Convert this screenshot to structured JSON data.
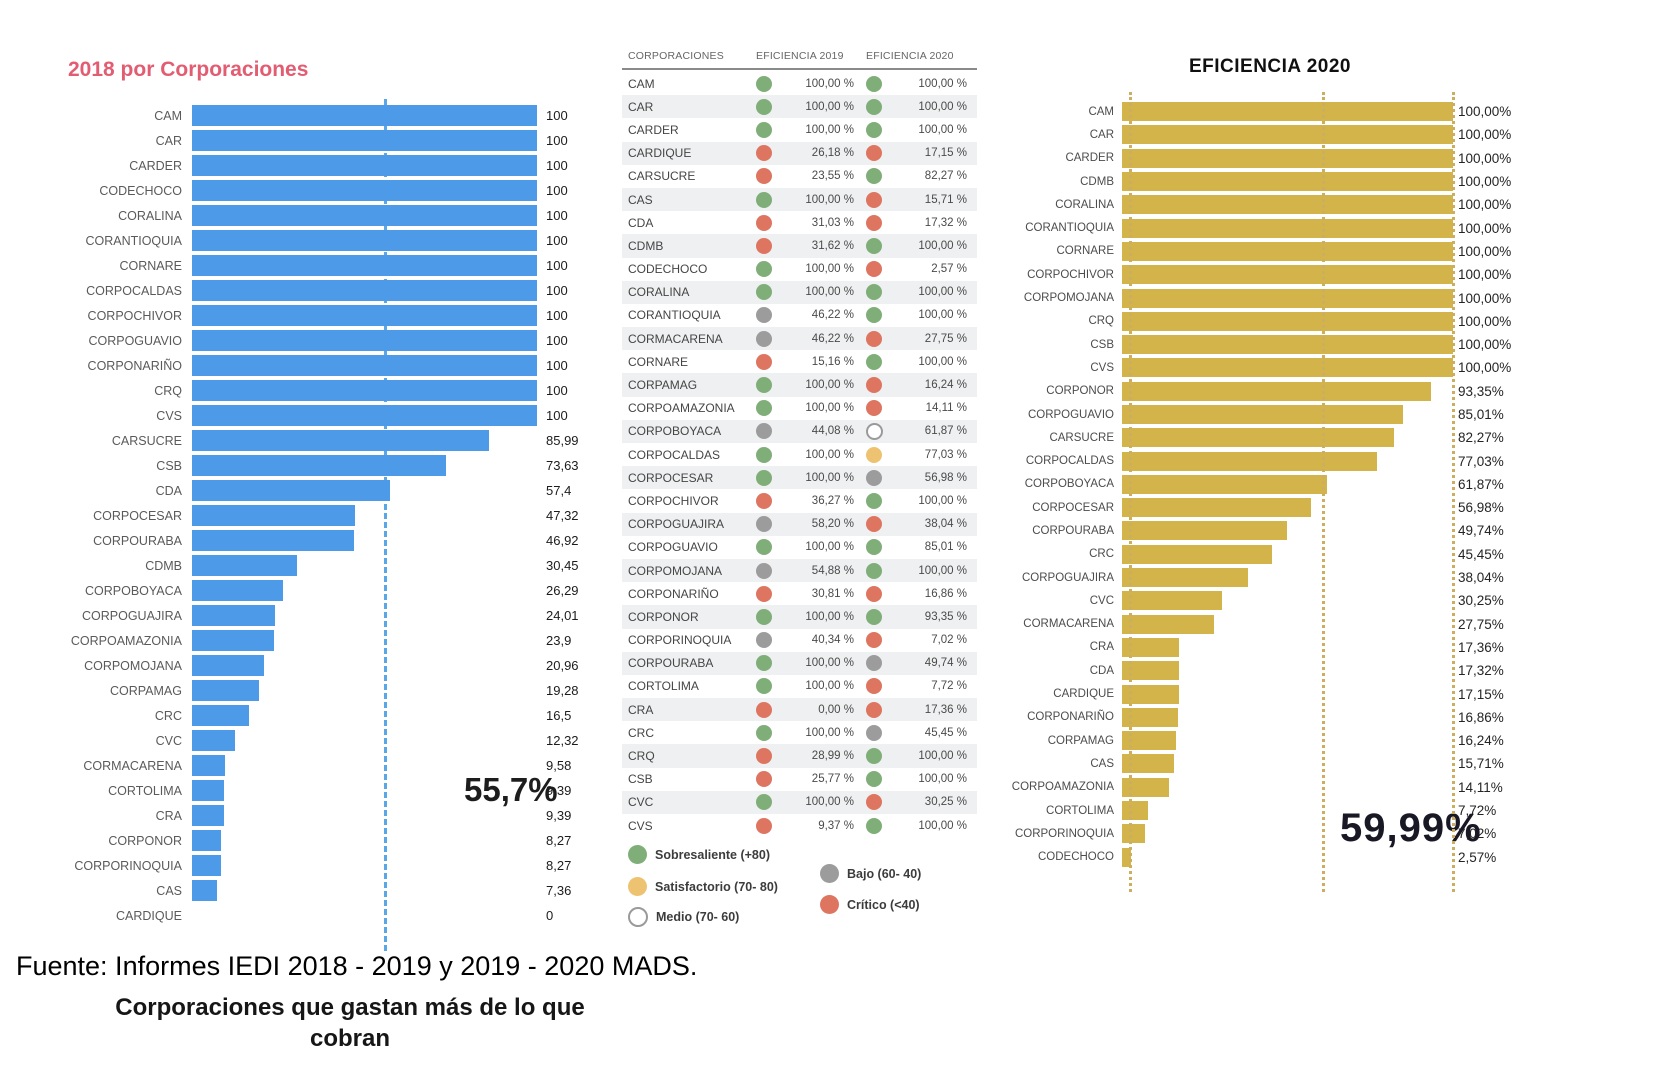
{
  "colors": {
    "left_bar": "#4d9ae8",
    "left_refline": "#5aa7e8",
    "left_title": "#e25c72",
    "right_bar": "#d2b44a",
    "right_gridline": "#ccae5e",
    "annotation_left": "#1d1d1d",
    "annotation_right": "#191926",
    "dots": {
      "green": "#7fae79",
      "yellow": "#edc371",
      "white": "#ffffff",
      "gray": "#9c9c9c",
      "red": "#dd7560"
    }
  },
  "footer": {
    "source": "Fuente: Informes IEDI 2018 - 2019 y 2019 - 2020 MADS.",
    "caption": "Corporaciones que gastan más de lo que cobran"
  },
  "chart_data": [
    {
      "type": "bar",
      "orientation": "horizontal",
      "title": "2018 por Corporaciones",
      "xlabel": "",
      "ylabel": "",
      "xlim": [
        0,
        100
      ],
      "grid": false,
      "reference_line": 55.65,
      "annotation": "55,7%",
      "categories": [
        "CAM",
        "CAR",
        "CARDER",
        "CODECHOCO",
        "CORALINA",
        "CORANTIOQUIA",
        "CORNARE",
        "CORPOCALDAS",
        "CORPOCHIVOR",
        "CORPOGUAVIO",
        "CORPONARIÑO",
        "CRQ",
        "CVS",
        "CARSUCRE",
        "CSB",
        "CDA",
        "CORPOCESAR",
        "CORPOURABA",
        "CDMB",
        "CORPOBOYACA",
        "CORPOGUAJIRA",
        "CORPOAMAZONIA",
        "CORPOMOJANA",
        "CORPAMAG",
        "CRC",
        "CVC",
        "CORMACARENA",
        "CORTOLIMA",
        "CRA",
        "CORPONOR",
        "CORPORINOQUIA",
        "CAS",
        "CARDIQUE"
      ],
      "values": [
        100,
        100,
        100,
        100,
        100,
        100,
        100,
        100,
        100,
        100,
        100,
        100,
        100,
        85.99,
        73.63,
        57.4,
        47.32,
        46.92,
        30.45,
        26.29,
        24.01,
        23.9,
        20.96,
        19.28,
        16.5,
        12.32,
        9.58,
        9.39,
        9.39,
        8.27,
        8.27,
        7.36,
        0
      ],
      "value_labels": [
        "100",
        "100",
        "100",
        "100",
        "100",
        "100",
        "100",
        "100",
        "100",
        "100",
        "100",
        "100",
        "100",
        "85,99",
        "73,63",
        "57,4",
        "47,32",
        "46,92",
        "30,45",
        "26,29",
        "24,01",
        "23,9",
        "20,96",
        "19,28",
        "16,5",
        "12,32",
        "9,58",
        "9,39",
        "9,39",
        "8,27",
        "8,27",
        "7,36",
        "0"
      ]
    },
    {
      "type": "table",
      "columns": [
        "CORPORACIONES",
        "EFICIENCIA 2019",
        "EFICIENCIA 2020"
      ],
      "rows": [
        [
          "CAM",
          "100,00 %",
          "green",
          "100,00 %",
          "green"
        ],
        [
          "CAR",
          "100,00 %",
          "green",
          "100,00 %",
          "green"
        ],
        [
          "CARDER",
          "100,00 %",
          "green",
          "100,00 %",
          "green"
        ],
        [
          "CARDIQUE",
          "26,18 %",
          "red",
          "17,15 %",
          "red"
        ],
        [
          "CARSUCRE",
          "23,55 %",
          "red",
          "82,27 %",
          "green"
        ],
        [
          "CAS",
          "100,00 %",
          "green",
          "15,71 %",
          "red"
        ],
        [
          "CDA",
          "31,03 %",
          "red",
          "17,32 %",
          "red"
        ],
        [
          "CDMB",
          "31,62 %",
          "red",
          "100,00 %",
          "green"
        ],
        [
          "CODECHOCO",
          "100,00 %",
          "green",
          "2,57 %",
          "red"
        ],
        [
          "CORALINA",
          "100,00 %",
          "green",
          "100,00 %",
          "green"
        ],
        [
          "CORANTIOQUIA",
          "46,22 %",
          "gray",
          "100,00 %",
          "green"
        ],
        [
          "CORMACARENA",
          "46,22 %",
          "gray",
          "27,75 %",
          "red"
        ],
        [
          "CORNARE",
          "15,16 %",
          "red",
          "100,00 %",
          "green"
        ],
        [
          "CORPAMAG",
          "100,00 %",
          "green",
          "16,24 %",
          "red"
        ],
        [
          "CORPOAMAZONIA",
          "100,00 %",
          "green",
          "14,11 %",
          "red"
        ],
        [
          "CORPOBOYACA",
          "44,08 %",
          "gray",
          "61,87 %",
          "white"
        ],
        [
          "CORPOCALDAS",
          "100,00 %",
          "green",
          "77,03 %",
          "yellow"
        ],
        [
          "CORPOCESAR",
          "100,00 %",
          "green",
          "56,98 %",
          "gray"
        ],
        [
          "CORPOCHIVOR",
          "36,27 %",
          "red",
          "100,00 %",
          "green"
        ],
        [
          "CORPOGUAJIRA",
          "58,20 %",
          "gray",
          "38,04 %",
          "red"
        ],
        [
          "CORPOGUAVIO",
          "100,00 %",
          "green",
          "85,01 %",
          "green"
        ],
        [
          "CORPOMOJANA",
          "54,88 %",
          "gray",
          "100,00 %",
          "green"
        ],
        [
          "CORPONARIÑO",
          "30,81 %",
          "red",
          "16,86 %",
          "red"
        ],
        [
          "CORPONOR",
          "100,00 %",
          "green",
          "93,35 %",
          "green"
        ],
        [
          "CORPORINOQUIA",
          "40,34 %",
          "gray",
          "7,02 %",
          "red"
        ],
        [
          "CORPOURABA",
          "100,00 %",
          "green",
          "49,74 %",
          "gray"
        ],
        [
          "CORTOLIMA",
          "100,00 %",
          "green",
          "7,72 %",
          "red"
        ],
        [
          "CRA",
          "0,00 %",
          "red",
          "17,36 %",
          "red"
        ],
        [
          "CRC",
          "100,00 %",
          "green",
          "45,45 %",
          "gray"
        ],
        [
          "CRQ",
          "28,99 %",
          "red",
          "100,00 %",
          "green"
        ],
        [
          "CSB",
          "25,77 %",
          "red",
          "100,00 %",
          "green"
        ],
        [
          "CVC",
          "100,00 %",
          "green",
          "30,25 %",
          "red"
        ],
        [
          "CVS",
          "9,37 %",
          "red",
          "100,00 %",
          "green"
        ]
      ],
      "legend": [
        {
          "color": "green",
          "label": "Sobresaliente (+80)"
        },
        {
          "color": "yellow",
          "label": "Satisfactorio (70- 80)"
        },
        {
          "color": "white",
          "label": "Medio (70- 60)"
        },
        {
          "color": "gray",
          "label": "Bajo (60- 40)"
        },
        {
          "color": "red",
          "label": "Crítico (<40)"
        }
      ]
    },
    {
      "type": "bar",
      "orientation": "horizontal",
      "title": "EFICIENCIA 2020",
      "xlabel": "",
      "ylabel": "",
      "xlim": [
        0,
        100
      ],
      "gridlines": [
        0,
        59.6,
        100
      ],
      "annotation": "59,99%",
      "categories": [
        "CAM",
        "CAR",
        "CARDER",
        "CDMB",
        "CORALINA",
        "CORANTIOQUIA",
        "CORNARE",
        "CORPOCHIVOR",
        "CORPOMOJANA",
        "CRQ",
        "CSB",
        "CVS",
        "CORPONOR",
        "CORPOGUAVIO",
        "CARSUCRE",
        "CORPOCALDAS",
        "CORPOBOYACA",
        "CORPOCESAR",
        "CORPOURABA",
        "CRC",
        "CORPOGUAJIRA",
        "CVC",
        "CORMACARENA",
        "CRA",
        "CDA",
        "CARDIQUE",
        "CORPONARIÑO",
        "CORPAMAG",
        "CAS",
        "CORPOAMAZONIA",
        "CORTOLIMA",
        "CORPORINOQUIA",
        "CODECHOCO"
      ],
      "values": [
        100,
        100,
        100,
        100,
        100,
        100,
        100,
        100,
        100,
        100,
        100,
        100,
        93.35,
        85.01,
        82.27,
        77.03,
        61.87,
        56.98,
        49.74,
        45.45,
        38.04,
        30.25,
        27.75,
        17.36,
        17.32,
        17.15,
        16.86,
        16.24,
        15.71,
        14.11,
        7.72,
        7.02,
        2.57
      ],
      "value_labels": [
        "100,00%",
        "100,00%",
        "100,00%",
        "100,00%",
        "100,00%",
        "100,00%",
        "100,00%",
        "100,00%",
        "100,00%",
        "100,00%",
        "100,00%",
        "100,00%",
        "93,35%",
        "85,01%",
        "82,27%",
        "77,03%",
        "61,87%",
        "56,98%",
        "49,74%",
        "45,45%",
        "38,04%",
        "30,25%",
        "27,75%",
        "17,36%",
        "17,32%",
        "17,15%",
        "16,86%",
        "16,24%",
        "15,71%",
        "14,11%",
        "7,72%",
        "7,02%",
        "2,57%"
      ]
    }
  ]
}
